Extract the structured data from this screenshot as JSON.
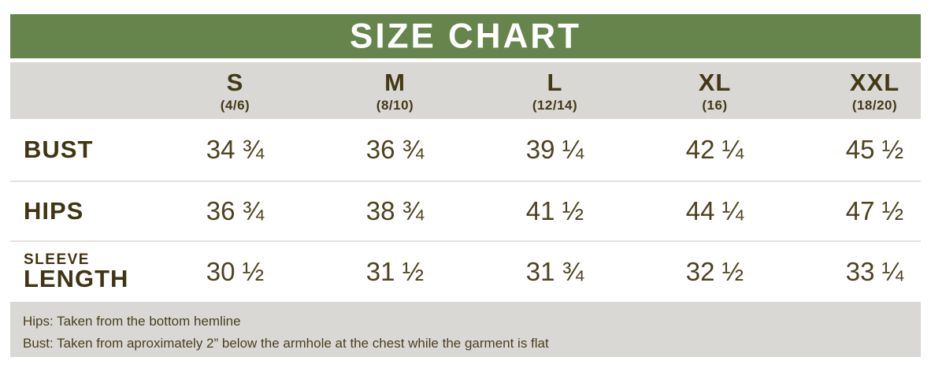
{
  "header": {
    "title": "SIZE CHART"
  },
  "columns": [
    {
      "size": "S",
      "range": "(4/6)"
    },
    {
      "size": "M",
      "range": "(8/10)"
    },
    {
      "size": "L",
      "range": "(12/14)"
    },
    {
      "size": "XL",
      "range": "(16)"
    },
    {
      "size": "XXL",
      "range": "(18/20)"
    }
  ],
  "rows": [
    {
      "label": "BUST",
      "values": [
        "34 ¾",
        "36 ¾",
        "39 ¼",
        "42 ¼",
        "45 ½"
      ]
    },
    {
      "label": "HIPS",
      "values": [
        "36 ¾",
        "38 ¾",
        "41 ½",
        "44 ¼",
        "47 ½"
      ]
    },
    {
      "label": "SLEEVE",
      "label2": "LENGTH",
      "values": [
        "30 ½",
        "31 ½",
        "31 ¾",
        "32 ½",
        "33 ¼"
      ]
    }
  ],
  "notes": {
    "line1": "Hips: Taken from the bottom hemline",
    "line2": "Bust: Taken from aproximately 2” below the armhole at the chest while the garment is flat"
  },
  "colors": {
    "header_green": "#66854C",
    "band_grey": "#D9D8D5",
    "label_brown": "#3F3512",
    "value_brown": "#4D431F",
    "title_white": "#FFFFFF"
  },
  "chart_data": {
    "type": "table",
    "title": "SIZE CHART",
    "columns": [
      "S (4/6)",
      "M (8/10)",
      "L (12/14)",
      "XL (16)",
      "XXL (18/20)"
    ],
    "rows": [
      {
        "name": "BUST",
        "values": [
          34.75,
          36.75,
          39.25,
          42.25,
          45.5
        ]
      },
      {
        "name": "HIPS",
        "values": [
          36.75,
          38.75,
          41.5,
          44.25,
          47.5
        ]
      },
      {
        "name": "SLEEVE LENGTH",
        "values": [
          30.5,
          31.5,
          31.75,
          32.5,
          33.25
        ]
      }
    ],
    "notes": [
      "Hips: Taken from the bottom hemline",
      "Bust: Taken from aproximately 2” below the armhole at the chest while the garment is flat"
    ]
  }
}
